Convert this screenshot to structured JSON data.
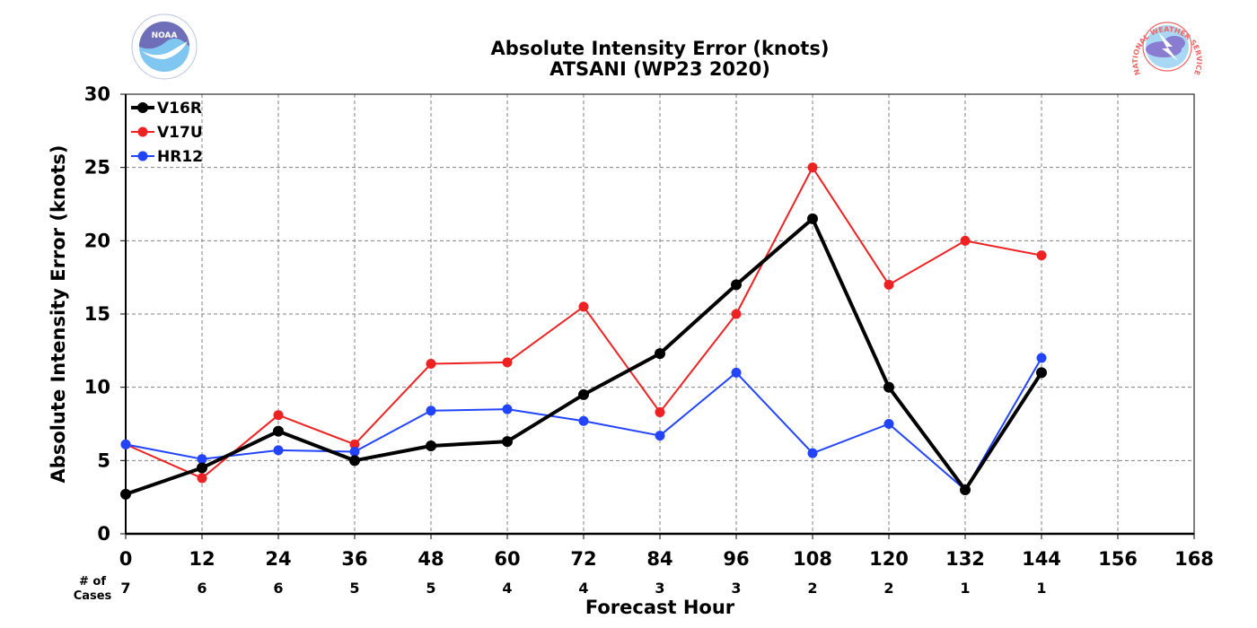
{
  "chart_data": {
    "type": "line",
    "title": "Absolute Intensity Error (knots)",
    "subtitle": "ATSANI (WP23 2020)",
    "xlabel": "Forecast Hour",
    "ylabel": "Absolute Intensity Error (knots)",
    "xlim": [
      0,
      168
    ],
    "ylim": [
      0,
      30
    ],
    "x_ticks": [
      0,
      12,
      24,
      36,
      48,
      60,
      72,
      84,
      96,
      108,
      120,
      132,
      144,
      156,
      168
    ],
    "y_ticks": [
      0,
      5,
      10,
      15,
      20,
      25,
      30
    ],
    "grid": true,
    "legend_position": "top-left",
    "cases_label_line1": "# of",
    "cases_label_line2": "Cases",
    "cases": [
      {
        "x": 0,
        "n": "7"
      },
      {
        "x": 12,
        "n": "6"
      },
      {
        "x": 24,
        "n": "6"
      },
      {
        "x": 36,
        "n": "5"
      },
      {
        "x": 48,
        "n": "5"
      },
      {
        "x": 60,
        "n": "4"
      },
      {
        "x": 72,
        "n": "4"
      },
      {
        "x": 84,
        "n": "3"
      },
      {
        "x": 96,
        "n": "3"
      },
      {
        "x": 108,
        "n": "2"
      },
      {
        "x": 120,
        "n": "2"
      },
      {
        "x": 132,
        "n": "1"
      },
      {
        "x": 144,
        "n": "1"
      }
    ],
    "series": [
      {
        "name": "V16R",
        "color": "#000000",
        "x": [
          0,
          12,
          24,
          36,
          48,
          60,
          72,
          84,
          96,
          108,
          120,
          132,
          144
        ],
        "values": [
          2.7,
          4.5,
          7.0,
          5.0,
          6.0,
          6.3,
          9.5,
          12.3,
          17.0,
          21.5,
          10.0,
          3.0,
          11.0
        ]
      },
      {
        "name": "V17U",
        "color": "#ee2222",
        "x": [
          0,
          12,
          24,
          36,
          48,
          60,
          72,
          84,
          96,
          108,
          120,
          132,
          144
        ],
        "values": [
          6.1,
          3.8,
          8.1,
          6.1,
          11.6,
          11.7,
          15.5,
          8.3,
          15.0,
          25.0,
          17.0,
          20.0,
          19.0
        ]
      },
      {
        "name": "HR12",
        "color": "#2244ff",
        "x": [
          0,
          12,
          24,
          36,
          48,
          60,
          72,
          84,
          96,
          108,
          120,
          132,
          144
        ],
        "values": [
          6.1,
          5.1,
          5.7,
          5.6,
          8.4,
          8.5,
          7.7,
          6.7,
          11.0,
          5.5,
          7.5,
          3.0,
          12.0
        ]
      }
    ]
  },
  "logos": {
    "left": {
      "name": "noaa-logo",
      "text": "NOAA"
    },
    "right": {
      "name": "nws-logo",
      "text": "NATIONAL WEATHER SERVICE"
    }
  }
}
